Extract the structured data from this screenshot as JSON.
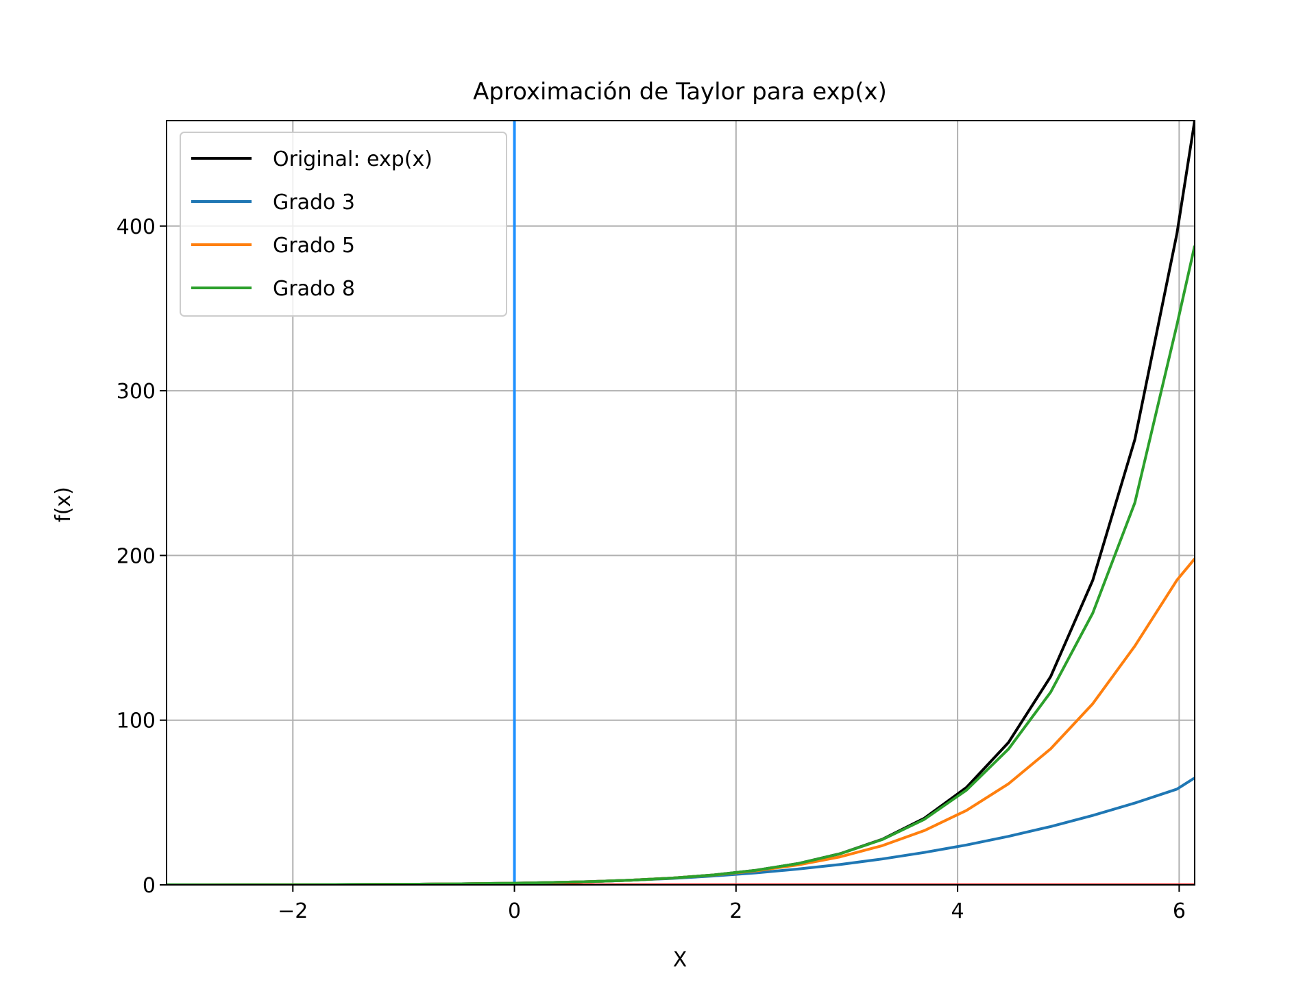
{
  "chart_data": {
    "type": "line",
    "title": "Aproximación de Taylor para exp(x)",
    "xlabel": "X",
    "ylabel": "f(x)",
    "xlim": [
      -3.14,
      6.14
    ],
    "ylim": [
      0,
      464
    ],
    "xticks": [
      -2,
      0,
      2,
      4,
      6
    ],
    "xtick_labels": [
      "−2",
      "0",
      "2",
      "4",
      "6"
    ],
    "yticks": [
      0,
      100,
      200,
      300,
      400
    ],
    "ytick_labels": [
      "0",
      "100",
      "200",
      "300",
      "400"
    ],
    "grid": true,
    "legend_position": "top-left",
    "x": [
      -3.14,
      -2.76,
      -2.38,
      -2.0,
      -1.62,
      -1.24,
      -0.86,
      -0.48,
      -0.1,
      0.28,
      0.66,
      1.04,
      1.42,
      1.8,
      2.18,
      2.56,
      2.94,
      3.32,
      3.7,
      4.08,
      4.46,
      4.84,
      5.22,
      5.6,
      5.98,
      6.14
    ],
    "series": [
      {
        "name": "Original: exp(x)",
        "color": "#000000",
        "values": [
          0.04,
          0.06,
          0.09,
          0.14,
          0.2,
          0.29,
          0.42,
          0.62,
          0.9,
          1.32,
          1.93,
          2.83,
          4.14,
          6.05,
          8.85,
          12.94,
          18.92,
          27.66,
          40.45,
          59.15,
          86.49,
          126.47,
          184.93,
          270.43,
          395.44,
          464.0
        ]
      },
      {
        "name": "Grado 3",
        "color": "#1f77b4",
        "values": [
          -2.17,
          -1.47,
          -0.95,
          -0.33,
          -0.03,
          0.13,
          0.41,
          0.62,
          0.9,
          1.32,
          1.93,
          2.78,
          3.92,
          5.4,
          7.27,
          9.6,
          12.4,
          15.74,
          19.67,
          24.23,
          29.46,
          35.41,
          42.14,
          49.7,
          58.13,
          64.98
        ]
      },
      {
        "name": "Grado 5",
        "color": "#ff7f0e",
        "values": [
          0.0,
          0.04,
          0.09,
          0.07,
          0.18,
          0.29,
          0.42,
          0.62,
          0.9,
          1.32,
          1.93,
          2.83,
          4.13,
          5.98,
          8.55,
          12.1,
          17.03,
          23.8,
          32.95,
          45.2,
          61.4,
          82.6,
          110.0,
          145.0,
          185.0,
          198.0
        ]
      },
      {
        "name": "Grado 8",
        "color": "#2ca02c",
        "values": [
          0.05,
          0.06,
          0.09,
          0.14,
          0.2,
          0.29,
          0.42,
          0.62,
          0.9,
          1.32,
          1.93,
          2.83,
          4.14,
          6.05,
          8.85,
          12.93,
          18.88,
          27.5,
          39.8,
          57.5,
          82.5,
          117.0,
          165.0,
          232.0,
          340.0,
          388.0
        ]
      }
    ],
    "annotations": [
      {
        "kind": "vertical-line",
        "x": 0,
        "color": "#1e90ff"
      },
      {
        "kind": "horizontal-line",
        "y": 0,
        "color": "#ff0000"
      }
    ]
  }
}
